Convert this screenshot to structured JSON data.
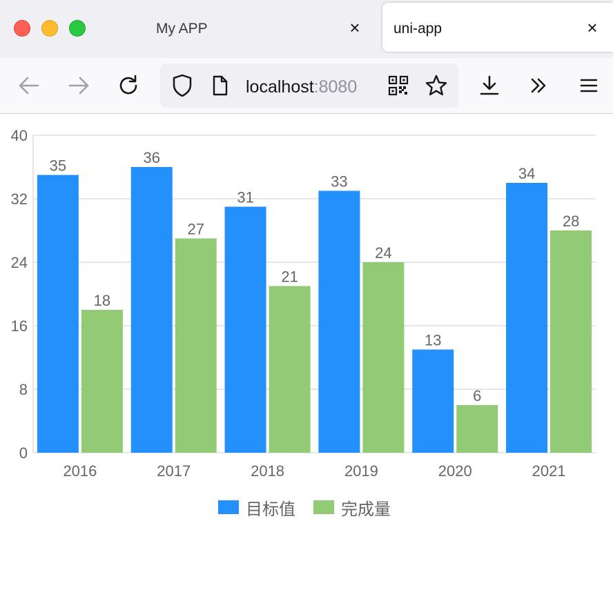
{
  "browser": {
    "tabs": [
      {
        "title": "My APP",
        "close": "×"
      },
      {
        "title": "uni-app",
        "close": "×"
      }
    ],
    "url": {
      "host": "localhost",
      "port": ":8080"
    }
  },
  "colors": {
    "series1": "#2390fc",
    "series2": "#93ca76",
    "grid": "#cccccc",
    "text": "#666666"
  },
  "chart_data": {
    "type": "bar",
    "categories": [
      "2016",
      "2017",
      "2018",
      "2019",
      "2020",
      "2021"
    ],
    "series": [
      {
        "name": "目标值",
        "values": [
          35,
          36,
          31,
          33,
          13,
          34
        ]
      },
      {
        "name": "完成量",
        "values": [
          18,
          27,
          21,
          24,
          6,
          28
        ]
      }
    ],
    "ylim": [
      0,
      40
    ],
    "yticks": [
      0,
      8,
      16,
      24,
      32,
      40
    ],
    "grid": true,
    "data_labels": true,
    "legend": "bottom-center"
  }
}
